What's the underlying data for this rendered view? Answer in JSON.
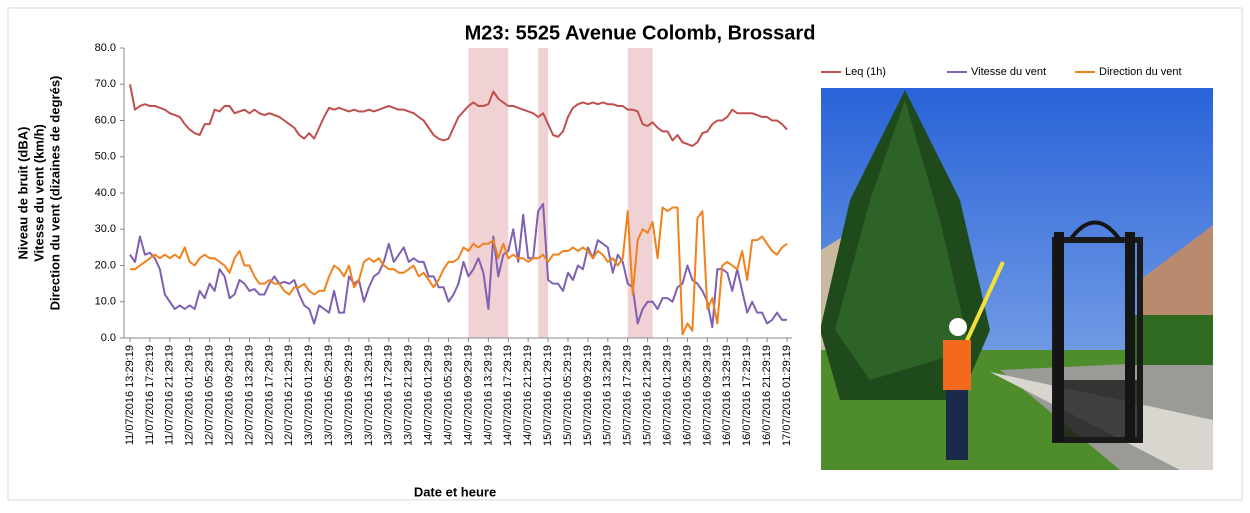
{
  "chart_data": {
    "type": "line",
    "title": "M23: 5525 Avenue Colomb, Brossard",
    "xlabel": "Date et heure",
    "ylabel": [
      "Niveau de bruit (dBA)",
      "Vitesse du vent (km/h)",
      "Direction du vent (dizaines de degrés)"
    ],
    "categories": [
      "11/07/2016 13:29:19",
      null,
      null,
      null,
      "11/07/2016 17:29:19",
      null,
      null,
      null,
      "11/07/2016 21:29:19",
      null,
      null,
      null,
      "12/07/2016 01:29:19",
      null,
      null,
      null,
      "12/07/2016 05:29:19",
      null,
      null,
      null,
      "12/07/2016 09:29:19",
      null,
      null,
      null,
      "12/07/2016 13:29:19",
      null,
      null,
      null,
      "12/07/2016 17:29:19",
      null,
      null,
      null,
      "12/07/2016 21:29:19",
      null,
      null,
      null,
      "13/07/2016 01:29:19",
      null,
      null,
      null,
      "13/07/2016 05:29:19",
      null,
      null,
      null,
      "13/07/2016 09:29:19",
      null,
      null,
      null,
      "13/07/2016 13:29:19",
      null,
      null,
      null,
      "13/07/2016 17:29:19",
      null,
      null,
      null,
      "13/07/2016 21:29:19",
      null,
      null,
      null,
      "14/07/2016 01:29:19",
      null,
      null,
      null,
      "14/07/2016 05:29:19",
      null,
      null,
      null,
      "14/07/2016 09:29:19",
      null,
      null,
      null,
      "14/07/2016 13:29:19",
      null,
      null,
      null,
      "14/07/2016 17:29:19",
      null,
      null,
      null,
      "14/07/2016 21:29:19",
      null,
      null,
      null,
      "15/07/2016 01:29:19",
      null,
      null,
      null,
      "15/07/2016 05:29:19",
      null,
      null,
      null,
      "15/07/2016 09:29:19",
      null,
      null,
      null,
      "15/07/2016 13:29:19",
      null,
      null,
      null,
      "15/07/2016 17:29:19",
      null,
      null,
      null,
      "15/07/2016 21:29:19",
      null,
      null,
      null,
      "16/07/2016 01:29:19",
      null,
      null,
      null,
      "16/07/2016 05:29:19",
      null,
      null,
      null,
      "16/07/2016 09:29:19",
      null,
      null,
      null,
      "16/07/2016 13:29:19",
      null,
      null,
      null,
      "16/07/2016 17:29:19",
      null,
      null,
      null,
      "16/07/2016 21:29:19",
      null,
      null,
      null,
      "17/07/2016 01:29:19"
    ],
    "series": [
      {
        "name": "Leq (1h)",
        "color": "#c0504d",
        "values": [
          70,
          63,
          64,
          64.5,
          64,
          64,
          63.5,
          63,
          62,
          61.5,
          61,
          59,
          57.5,
          56.5,
          56,
          59,
          59,
          63,
          62.5,
          64,
          64,
          62,
          62.5,
          63,
          62,
          63,
          62,
          61.5,
          62,
          61.5,
          61,
          60,
          59,
          58,
          56,
          55,
          56.5,
          55,
          58,
          61,
          63.5,
          63,
          63.5,
          63,
          62.5,
          63,
          62.5,
          62.5,
          63,
          62.5,
          63,
          63.5,
          64,
          63.5,
          63,
          63,
          62.5,
          62,
          61,
          60,
          58,
          56,
          55,
          54.5,
          55,
          58,
          61,
          62.5,
          64,
          65,
          64,
          64,
          64.5,
          68,
          66,
          65,
          64,
          64,
          63.5,
          63,
          62.5,
          62,
          61,
          62,
          59,
          56,
          55.5,
          57,
          61,
          63.5,
          64.5,
          65,
          64.5,
          65,
          64.5,
          65,
          64.5,
          64.5,
          64,
          64,
          63,
          63,
          62.5,
          59,
          58.5,
          59.5,
          58,
          57,
          57,
          54.5,
          56,
          54,
          53.5,
          53,
          54,
          56.5,
          57,
          59,
          60,
          60,
          61,
          63,
          62,
          62,
          62,
          62,
          61.5,
          61,
          61,
          60,
          60,
          59,
          57.5
        ]
      },
      {
        "name": "Vitesse du vent",
        "color": "#7f60b2",
        "values": [
          23,
          21,
          28,
          23,
          23.5,
          22,
          19,
          12,
          10,
          8,
          9,
          8,
          9,
          8,
          13,
          11,
          15,
          13,
          19,
          17,
          11,
          12,
          16,
          15,
          13,
          13.5,
          12,
          12,
          15,
          17,
          15,
          15.5,
          15,
          16,
          12,
          9,
          8,
          4,
          9,
          8,
          7,
          13,
          7,
          7,
          17,
          15,
          16,
          10,
          14,
          17,
          18,
          21,
          26,
          21,
          23,
          25,
          21,
          22,
          21,
          21,
          17,
          17,
          14,
          14,
          10,
          12,
          15,
          21,
          17,
          19,
          22,
          18,
          8,
          28,
          17,
          23,
          24,
          30,
          21,
          34,
          22,
          22,
          35,
          37,
          16,
          15,
          15,
          13,
          18,
          16,
          20,
          19,
          25,
          22,
          27,
          26,
          25,
          18,
          23,
          21,
          15,
          14,
          4,
          8,
          10,
          10,
          8,
          11,
          11,
          10,
          14,
          15,
          20,
          16,
          15,
          13,
          10,
          3,
          19,
          19,
          18,
          13,
          19,
          13,
          7,
          10,
          7,
          7,
          4,
          5,
          7,
          5,
          5
        ]
      },
      {
        "name": "Direction du vent",
        "color": "#f0821e",
        "values": [
          19,
          19,
          20,
          21,
          22,
          23,
          22,
          23,
          22,
          23,
          22,
          25,
          21,
          20,
          22,
          23,
          22,
          22,
          21,
          20,
          18,
          22,
          24,
          20,
          20,
          17,
          15,
          15,
          16,
          15,
          15,
          13,
          12,
          14,
          14,
          15,
          13,
          12,
          13,
          13,
          17,
          20,
          19,
          17,
          20,
          14,
          16,
          21,
          22,
          21,
          22,
          20,
          19,
          19,
          18,
          18,
          19,
          20,
          17,
          18,
          16,
          14,
          16,
          19,
          21,
          21,
          22,
          25,
          24,
          26,
          25,
          26,
          26,
          27,
          22,
          26,
          22,
          23,
          22,
          22,
          21,
          22,
          22,
          23,
          21,
          23,
          23,
          24,
          24,
          25,
          24,
          25,
          24,
          22,
          24,
          23,
          21,
          22,
          20,
          22,
          35,
          12,
          27,
          30,
          29,
          32,
          22,
          36,
          35,
          36,
          36,
          1,
          4,
          2,
          33,
          35,
          8,
          11,
          4,
          20,
          21,
          20,
          19,
          24,
          16,
          27,
          27,
          28,
          26,
          24,
          23,
          25,
          26
        ]
      }
    ],
    "highlight_ranges": [
      [
        68,
        76
      ],
      [
        82,
        84
      ],
      [
        100,
        105
      ]
    ],
    "highlight_color": "#f0d2d4",
    "ylim": [
      0,
      80
    ],
    "yticks": [
      {
        "value": 0,
        "label": "0.0"
      },
      {
        "value": 10,
        "label": "10.0"
      },
      {
        "value": 20,
        "label": "20.0"
      },
      {
        "value": 30,
        "label": "30.0"
      },
      {
        "value": 40,
        "label": "40.0"
      },
      {
        "value": 50,
        "label": "50.0"
      },
      {
        "value": 60,
        "label": "60.0"
      },
      {
        "value": 70,
        "label": "70.0"
      },
      {
        "value": 80,
        "label": "80.0"
      }
    ],
    "grid": false,
    "legend": "top-right"
  }
}
